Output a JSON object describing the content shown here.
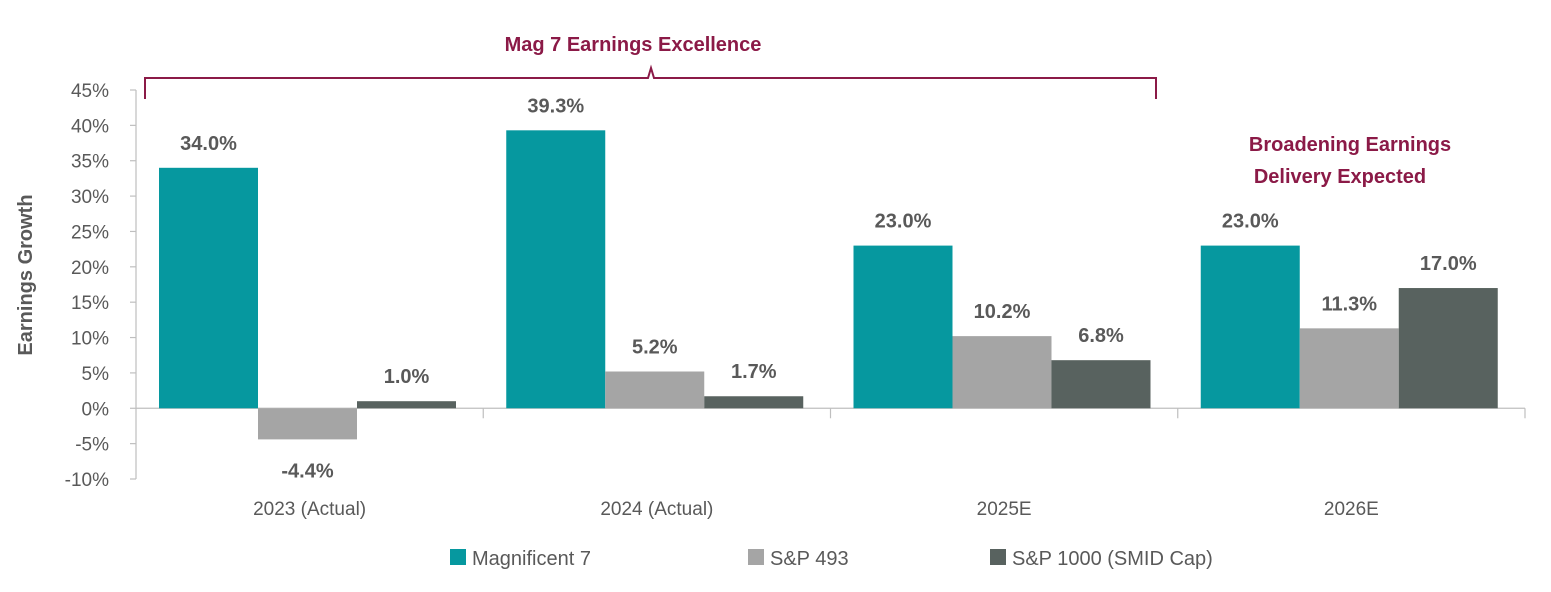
{
  "chart_data": {
    "type": "bar",
    "ylabel": "Earnings Growth",
    "ylim": [
      -10,
      45
    ],
    "yticks": [
      "45%",
      "40%",
      "35%",
      "30%",
      "25%",
      "20%",
      "15%",
      "10%",
      "5%",
      "0%",
      "-5%",
      "-10%"
    ],
    "categories": [
      "2023 (Actual)",
      "2024 (Actual)",
      "2025E",
      "2026E"
    ],
    "series": [
      {
        "name": "Magnificent 7",
        "color": "#06989F",
        "values": [
          34.0,
          39.3,
          23.0,
          23.0
        ],
        "labels": [
          "34.0%",
          "39.3%",
          "23.0%",
          "23.0%"
        ]
      },
      {
        "name": "S&P 493",
        "color": "#A5A5A5",
        "values": [
          -4.4,
          5.2,
          10.2,
          11.3
        ],
        "labels": [
          "-4.4%",
          "5.2%",
          "10.2%",
          "11.3%"
        ]
      },
      {
        "name": "S&P 1000 (SMID Cap)",
        "color": "#58625F",
        "values": [
          1.0,
          1.7,
          6.8,
          17.0
        ],
        "labels": [
          "1.0%",
          "1.7%",
          "6.8%",
          "17.0%"
        ]
      }
    ],
    "annotations": [
      {
        "text": "Mag 7 Earnings Excellence",
        "color": "#8B1A47"
      },
      {
        "text": "Broadening Earnings",
        "color": "#8B1A47"
      },
      {
        "text": "Delivery Expected",
        "color": "#8B1A47"
      }
    ],
    "legend_position": "bottom",
    "grid": false
  }
}
